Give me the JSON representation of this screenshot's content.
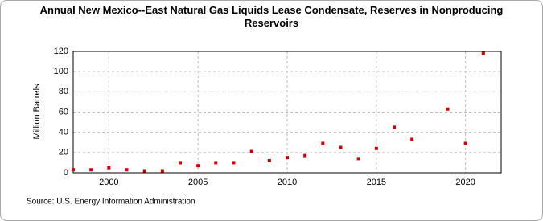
{
  "chart_data": {
    "type": "scatter",
    "title": "Annual New Mexico--East Natural Gas Liquids Lease Condensate, Reserves in Nonproducing Reservoirs",
    "y_label": "Million Barrels",
    "source": "Source: U.S. Energy Information Administration",
    "color": "#cc0000",
    "x": [
      1998,
      1999,
      2000,
      2001,
      2002,
      2003,
      2004,
      2005,
      2006,
      2007,
      2008,
      2009,
      2010,
      2011,
      2012,
      2013,
      2014,
      2015,
      2016,
      2017,
      2019,
      2020,
      2021
    ],
    "values": [
      3,
      3,
      5,
      3,
      2,
      2,
      10,
      7,
      10,
      10,
      21,
      12,
      15,
      17,
      29,
      25,
      14,
      24,
      45,
      33,
      63,
      29,
      118
    ],
    "xlim": [
      1998,
      2022
    ],
    "xticks": [
      2000,
      2005,
      2010,
      2015,
      2020
    ],
    "ylim": [
      0,
      120
    ],
    "yticks": [
      0,
      20,
      40,
      60,
      80,
      100,
      120
    ],
    "grid": true
  }
}
